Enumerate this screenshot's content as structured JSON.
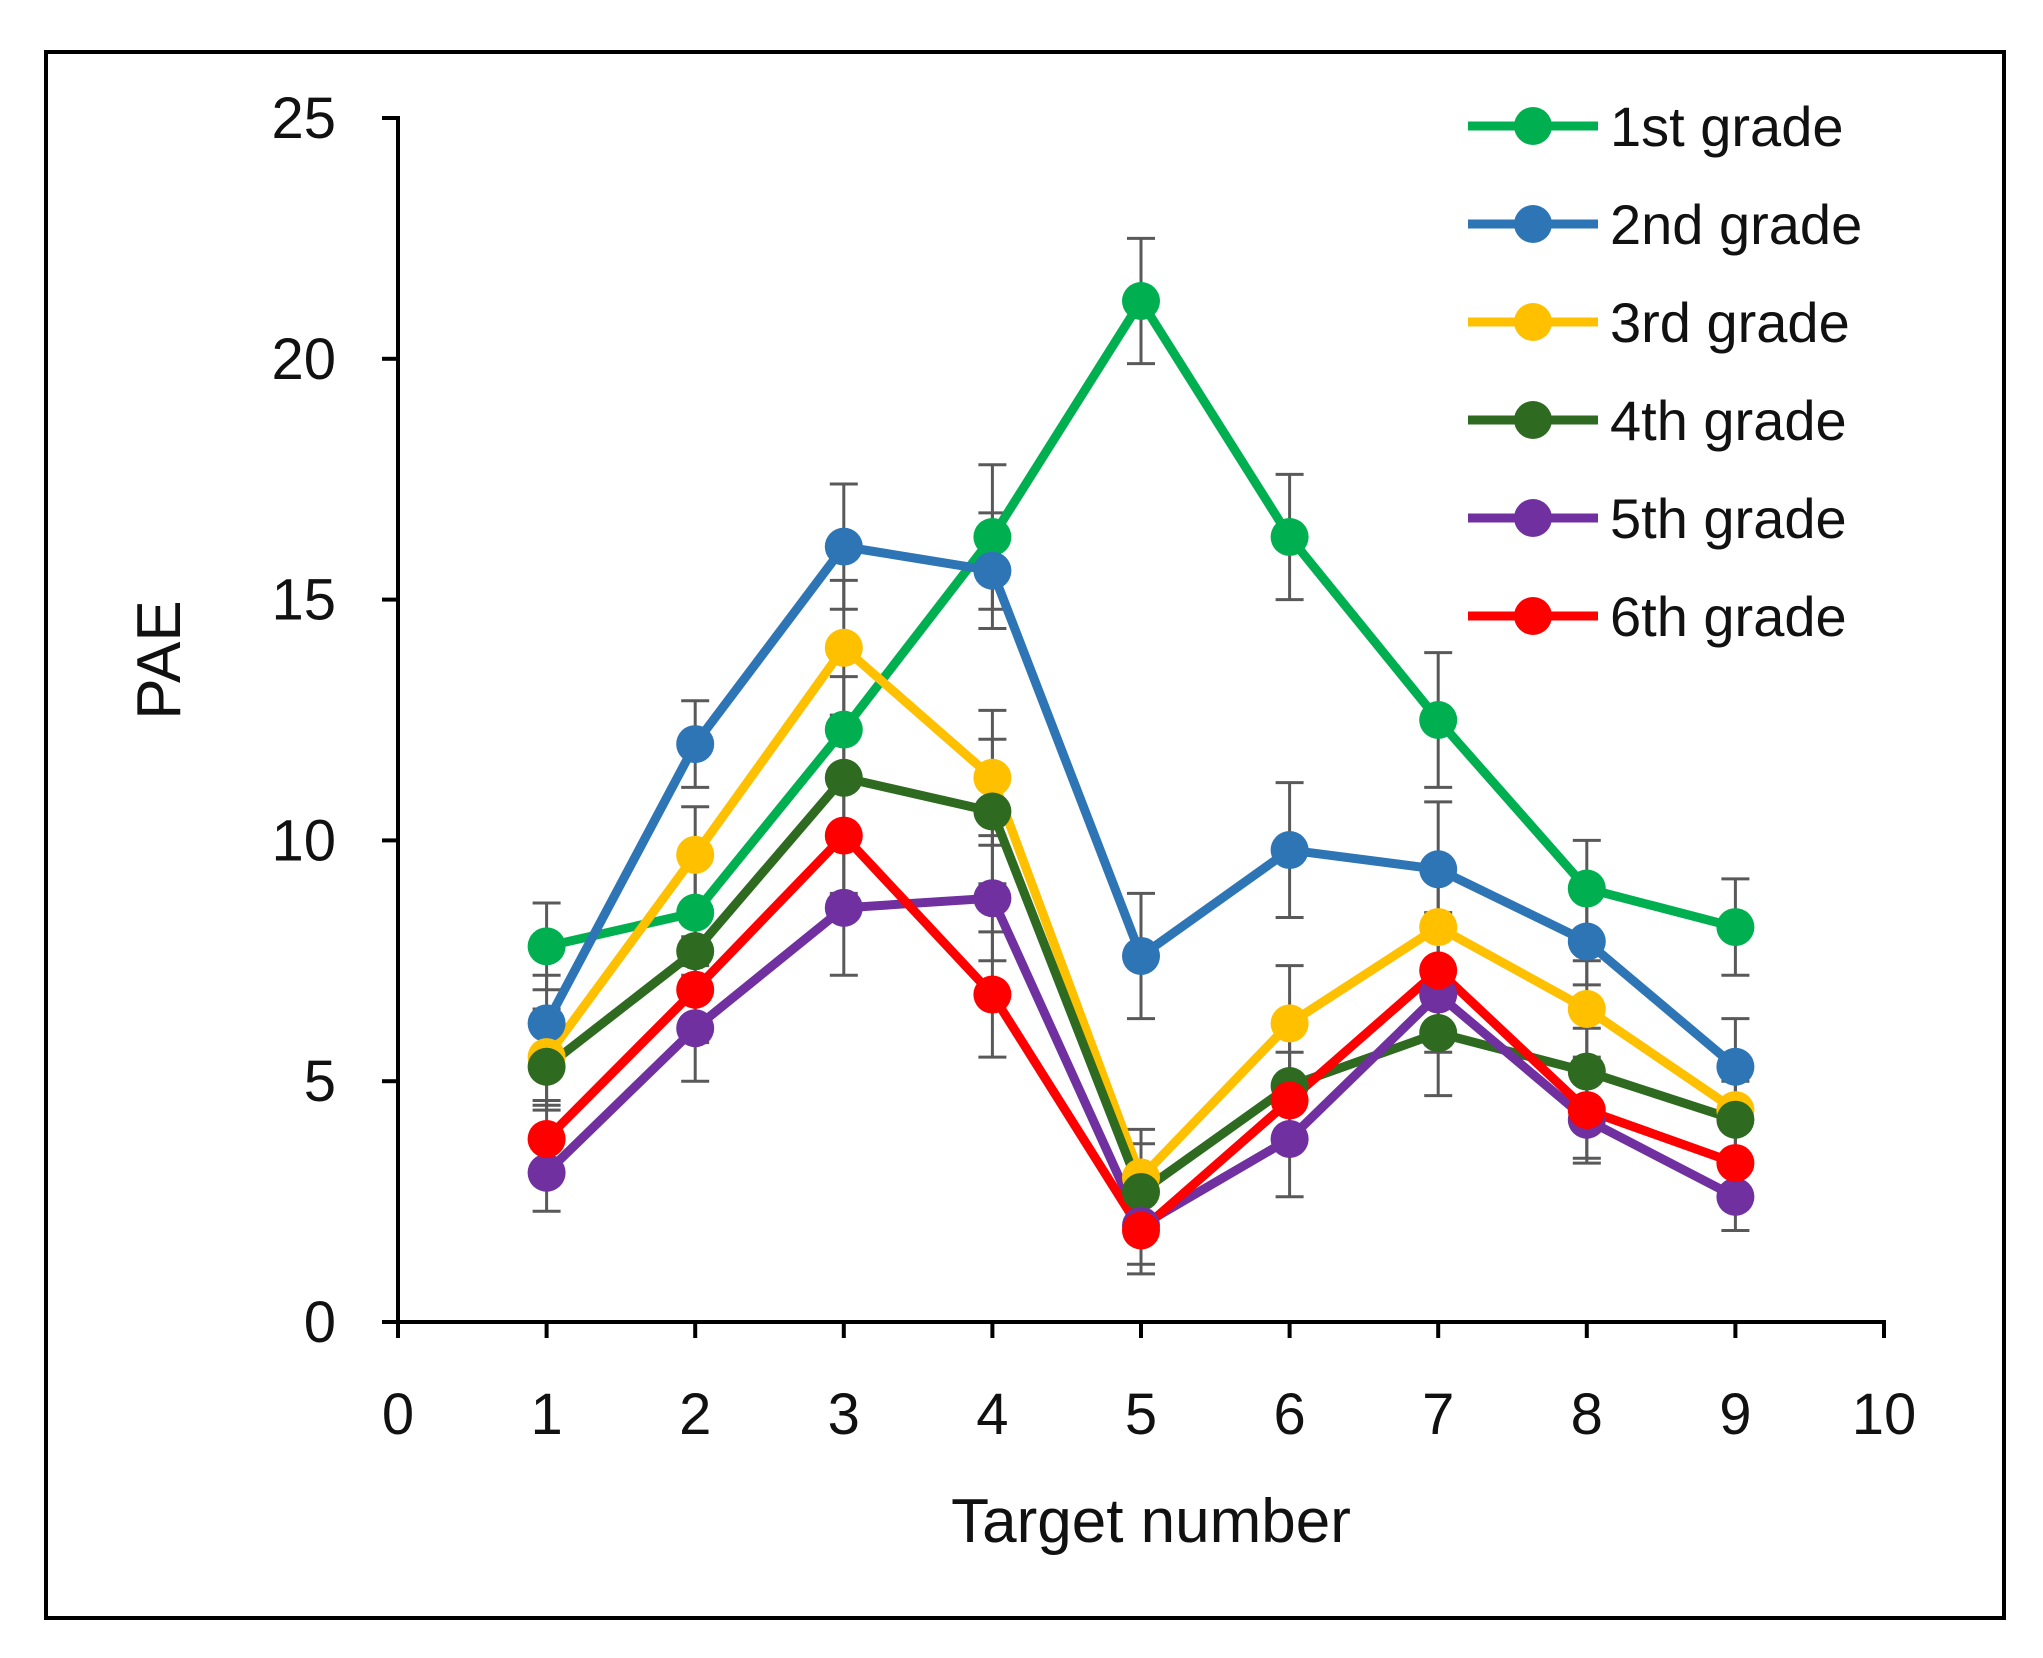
{
  "chart_data": {
    "type": "line",
    "title": "",
    "xlabel": "Target number",
    "ylabel": "PAE",
    "xlim": [
      0,
      10
    ],
    "ylim": [
      0,
      25
    ],
    "xticks": [
      0,
      1,
      2,
      3,
      4,
      5,
      6,
      7,
      8,
      9,
      10
    ],
    "yticks": [
      0,
      5,
      10,
      15,
      20,
      25
    ],
    "x": [
      1,
      2,
      3,
      4,
      5,
      6,
      7,
      8,
      9
    ],
    "grid": false,
    "legend_position": "top-right",
    "series": [
      {
        "name": "1st grade",
        "color": "#00b050",
        "values": [
          7.8,
          8.5,
          12.3,
          16.3,
          21.2,
          16.3,
          12.5,
          9.0,
          8.2
        ],
        "errors": [
          0.9,
          1.1,
          1.1,
          1.5,
          1.3,
          1.3,
          1.4,
          1.0,
          1.0
        ]
      },
      {
        "name": "2nd grade",
        "color": "#2e75b6",
        "values": [
          6.2,
          12.0,
          16.1,
          15.6,
          7.6,
          9.8,
          9.4,
          7.9,
          5.3
        ],
        "errors": [
          1.0,
          0.9,
          1.3,
          1.2,
          1.3,
          1.4,
          1.4,
          0.9,
          1.0
        ]
      },
      {
        "name": "3rd grade",
        "color": "#ffc000",
        "values": [
          5.5,
          9.7,
          14.0,
          11.3,
          3.0,
          6.2,
          8.2,
          6.5,
          4.4
        ],
        "errors": [
          1.0,
          1.0,
          1.4,
          1.4,
          1.0,
          1.2,
          1.3,
          1.0,
          0.9
        ]
      },
      {
        "name": "4th grade",
        "color": "#2e6a1f",
        "values": [
          5.3,
          7.7,
          11.3,
          10.6,
          2.7,
          4.9,
          6.0,
          5.2,
          4.2
        ],
        "errors": [
          0.9,
          1.0,
          1.2,
          1.5,
          1.0,
          1.2,
          1.3,
          0.9,
          0.8
        ]
      },
      {
        "name": "5th grade",
        "color": "#7030a0",
        "values": [
          3.1,
          6.1,
          8.6,
          8.8,
          2.0,
          3.8,
          6.8,
          4.2,
          2.6
        ],
        "errors": [
          0.8,
          1.1,
          1.4,
          1.3,
          0.8,
          1.2,
          1.2,
          0.9,
          0.7
        ]
      },
      {
        "name": "6th grade",
        "color": "#ff0000",
        "values": [
          3.8,
          6.9,
          10.1,
          6.8,
          1.9,
          4.6,
          7.3,
          4.4,
          3.3
        ],
        "errors": [
          0.8,
          1.1,
          1.2,
          1.3,
          0.9,
          1.0,
          1.2,
          1.0,
          0.8
        ]
      }
    ]
  }
}
